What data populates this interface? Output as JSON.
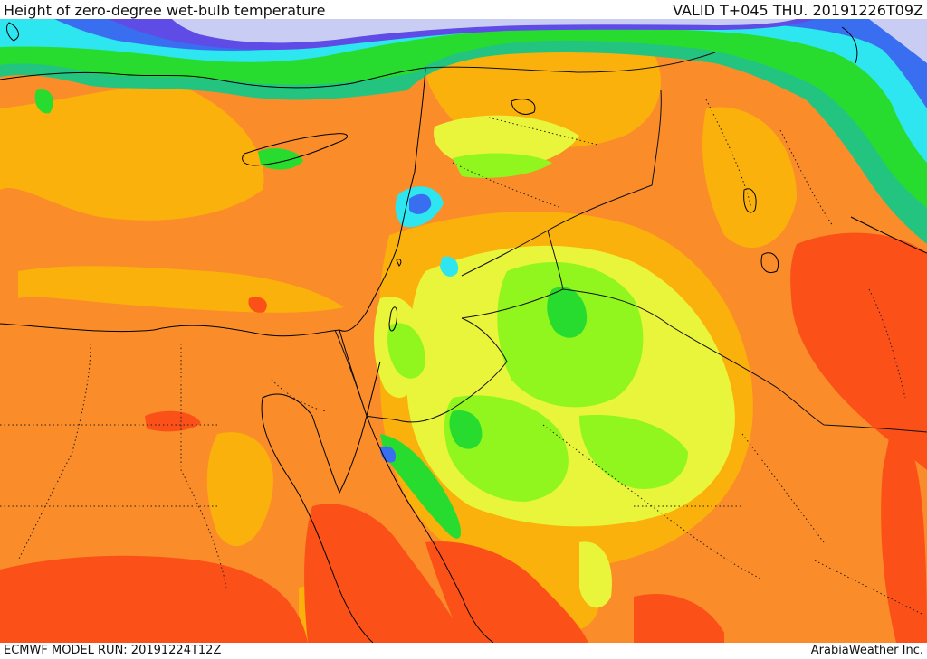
{
  "header": {
    "title": "Height of zero-degree wet-bulb temperature",
    "valid": "VALID T+045 THU. 20191226T09Z"
  },
  "footer": {
    "model_run": "ECMWF MODEL RUN: 20191224T12Z",
    "credit": "ArabiaWeather Inc."
  },
  "colors": {
    "very_high": "#fb5119",
    "high": "#fa8c2a",
    "mid_high": "#fbb10b",
    "mid": "#e9f53a",
    "mid_low": "#90f61e",
    "low": "#27dc2f",
    "lower": "#23c47f",
    "cold": "#2ee6ef",
    "colder": "#3a6ef0",
    "coldest": "#5f4ce6",
    "snow": "#c9cdf4",
    "border_line": "#111111",
    "coast_line": "#000000"
  }
}
